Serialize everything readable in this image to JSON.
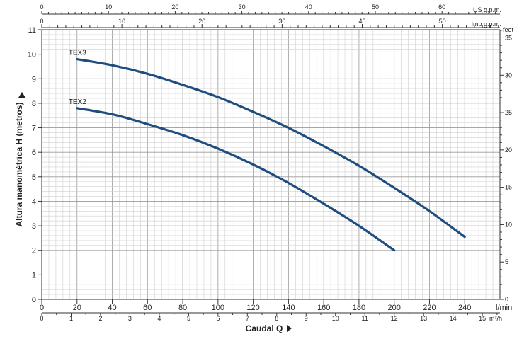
{
  "chart_data": {
    "type": "line",
    "x_label": "Caudal  Q",
    "y_label": "Altura manométrica H (metros)",
    "x_unit": "l/min",
    "x_range": [
      0,
      260
    ],
    "y_range": [
      0,
      11
    ],
    "x_ticks": [
      0,
      20,
      40,
      60,
      80,
      100,
      120,
      140,
      160,
      180,
      200,
      220,
      240
    ],
    "y_ticks": [
      0,
      1,
      2,
      3,
      4,
      5,
      6,
      7,
      8,
      9,
      10,
      11
    ],
    "secondary_axes": {
      "top_us": {
        "unit": "US g.p.m.",
        "ticks": [
          0,
          10,
          20,
          30,
          40,
          50,
          60
        ]
      },
      "top_imp": {
        "unit": "Imp g.p.m.",
        "ticks": [
          0,
          10,
          20,
          30,
          40,
          50
        ]
      },
      "bottom_m3h": {
        "unit": "m³/h",
        "ticks": [
          0,
          1,
          2,
          3,
          4,
          5,
          6,
          7,
          8,
          9,
          10,
          11,
          12,
          13,
          14,
          15
        ]
      },
      "right_feet": {
        "unit": "feet",
        "ticks": [
          0,
          5,
          10,
          15,
          20,
          25,
          30,
          35
        ]
      }
    },
    "grid": true,
    "series": [
      {
        "name": "TEX3",
        "color": "#1f4e7e",
        "x": [
          20,
          40,
          60,
          80,
          100,
          120,
          140,
          160,
          180,
          200,
          220,
          240
        ],
        "y": [
          9.8,
          9.55,
          9.2,
          8.75,
          8.25,
          7.65,
          7.0,
          6.25,
          5.45,
          4.55,
          3.6,
          2.55
        ]
      },
      {
        "name": "TEX2",
        "color": "#1f4e7e",
        "x": [
          20,
          40,
          60,
          80,
          100,
          120,
          140,
          160,
          180,
          200
        ],
        "y": [
          7.8,
          7.55,
          7.15,
          6.7,
          6.15,
          5.5,
          4.75,
          3.9,
          3.0,
          2.0
        ]
      }
    ]
  }
}
